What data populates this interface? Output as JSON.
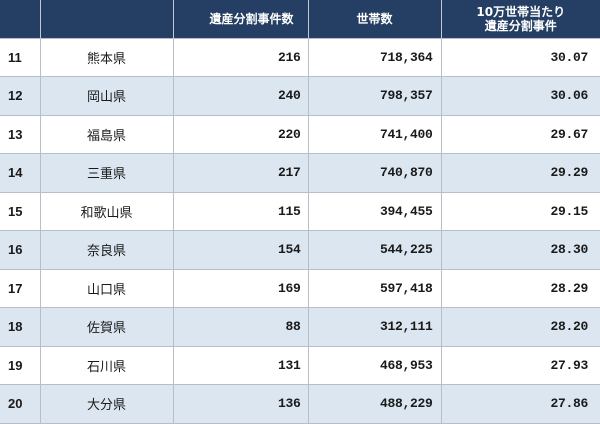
{
  "table": {
    "headers": {
      "rank": "",
      "prefecture": "",
      "cases": "遺産分割事件数",
      "households": "世帯数",
      "rate_line1": "10万世帯当たり",
      "rate_line2": "遺産分割事件"
    },
    "rows": [
      {
        "rank": "11",
        "prefecture": "熊本県",
        "cases": "216",
        "households": "718,364",
        "rate": "30.07"
      },
      {
        "rank": "12",
        "prefecture": "岡山県",
        "cases": "240",
        "households": "798,357",
        "rate": "30.06"
      },
      {
        "rank": "13",
        "prefecture": "福島県",
        "cases": "220",
        "households": "741,400",
        "rate": "29.67"
      },
      {
        "rank": "14",
        "prefecture": "三重県",
        "cases": "217",
        "households": "740,870",
        "rate": "29.29"
      },
      {
        "rank": "15",
        "prefecture": "和歌山県",
        "cases": "115",
        "households": "394,455",
        "rate": "29.15"
      },
      {
        "rank": "16",
        "prefecture": "奈良県",
        "cases": "154",
        "households": "544,225",
        "rate": "28.30"
      },
      {
        "rank": "17",
        "prefecture": "山口県",
        "cases": "169",
        "households": "597,418",
        "rate": "28.29"
      },
      {
        "rank": "18",
        "prefecture": "佐賀県",
        "cases": "88",
        "households": "312,111",
        "rate": "28.20"
      },
      {
        "rank": "19",
        "prefecture": "石川県",
        "cases": "131",
        "households": "468,953",
        "rate": "27.93"
      },
      {
        "rank": "20",
        "prefecture": "大分県",
        "cases": "136",
        "households": "488,229",
        "rate": "27.86"
      }
    ]
  },
  "colors": {
    "header_bg": "#243f63",
    "header_text": "#ffffff",
    "row_alt_bg": "#dce6f1",
    "row_bg": "#ffffff",
    "border": "#b8bec8"
  }
}
